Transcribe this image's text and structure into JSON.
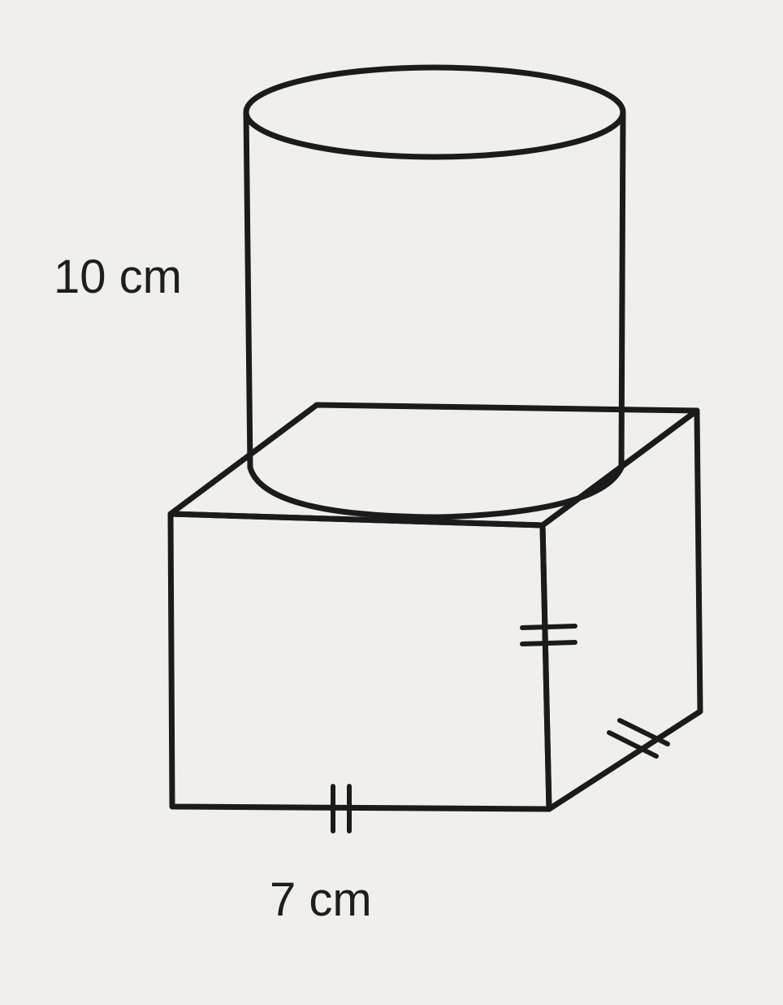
{
  "figure": {
    "cylinder": {
      "height_label": "10 cm"
    },
    "cube": {
      "side_label": "7 cm"
    },
    "colors": {
      "background": "#f1efec",
      "stroke": "#1b1b1b"
    }
  }
}
